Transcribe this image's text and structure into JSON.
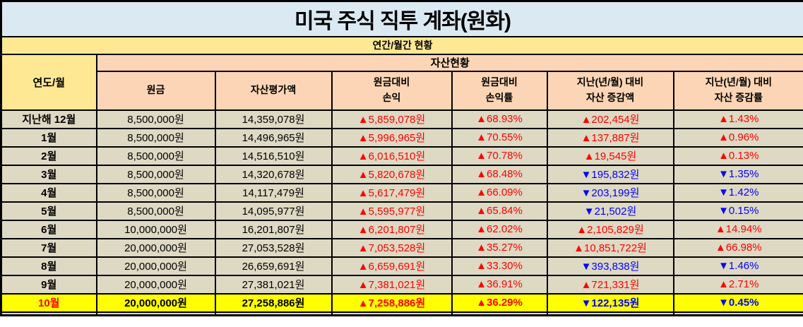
{
  "title": "미국 주식 직투 계좌(원화)",
  "subtitle": "연간/월간 현황",
  "section_header": "자산현황",
  "corner_header": "연도/월",
  "column_headers": [
    "원금",
    "자산평가액",
    "원금대비\n손익",
    "원금대비\n손익률",
    "지난(년/월) 대비\n자산 증감액",
    "지난(년/월) 대비\n자산 증감률"
  ],
  "rows": [
    {
      "month": "지난해 12월",
      "principal": "8,500,000원",
      "valuation": "14,359,078원",
      "profit_loss": "▲5,859,078원",
      "profit_loss_rate": "▲68.93%",
      "pl_dir": "up",
      "asset_change": "▲202,454원",
      "asset_change_rate": "▲1.43%",
      "chg_dir": "up",
      "highlight": false
    },
    {
      "month": "1월",
      "principal": "8,500,000원",
      "valuation": "14,496,965원",
      "profit_loss": "▲5,996,965원",
      "profit_loss_rate": "▲70.55%",
      "pl_dir": "up",
      "asset_change": "▲137,887원",
      "asset_change_rate": "▲0.96%",
      "chg_dir": "up",
      "highlight": false
    },
    {
      "month": "2월",
      "principal": "8,500,000원",
      "valuation": "14,516,510원",
      "profit_loss": "▲6,016,510원",
      "profit_loss_rate": "▲70.78%",
      "pl_dir": "up",
      "asset_change": "▲19,545원",
      "asset_change_rate": "▲0.13%",
      "chg_dir": "up",
      "highlight": false
    },
    {
      "month": "3월",
      "principal": "8,500,000원",
      "valuation": "14,320,678원",
      "profit_loss": "▲5,820,678원",
      "profit_loss_rate": "▲68.48%",
      "pl_dir": "up",
      "asset_change": "▼195,832원",
      "asset_change_rate": "▼1.35%",
      "chg_dir": "down",
      "highlight": false
    },
    {
      "month": "4월",
      "principal": "8,500,000원",
      "valuation": "14,117,479원",
      "profit_loss": "▲5,617,479원",
      "profit_loss_rate": "▲66.09%",
      "pl_dir": "up",
      "asset_change": "▼203,199원",
      "asset_change_rate": "▼1.42%",
      "chg_dir": "down",
      "highlight": false
    },
    {
      "month": "5월",
      "principal": "8,500,000원",
      "valuation": "14,095,977원",
      "profit_loss": "▲5,595,977원",
      "profit_loss_rate": "▲65.84%",
      "pl_dir": "up",
      "asset_change": "▼21,502원",
      "asset_change_rate": "▼0.15%",
      "chg_dir": "down",
      "highlight": false
    },
    {
      "month": "6월",
      "principal": "10,000,000원",
      "valuation": "16,201,807원",
      "profit_loss": "▲6,201,807원",
      "profit_loss_rate": "▲62.02%",
      "pl_dir": "up",
      "asset_change": "▲2,105,829원",
      "asset_change_rate": "▲14.94%",
      "chg_dir": "up",
      "highlight": false
    },
    {
      "month": "7월",
      "principal": "20,000,000원",
      "valuation": "27,053,528원",
      "profit_loss": "▲7,053,528원",
      "profit_loss_rate": "▲35.27%",
      "pl_dir": "up",
      "asset_change": "▲10,851,722원",
      "asset_change_rate": "▲66.98%",
      "chg_dir": "up",
      "highlight": false
    },
    {
      "month": "8월",
      "principal": "20,000,000원",
      "valuation": "26,659,691원",
      "profit_loss": "▲6,659,691원",
      "profit_loss_rate": "▲33.30%",
      "pl_dir": "up",
      "asset_change": "▼393,838원",
      "asset_change_rate": "▼1.46%",
      "chg_dir": "down",
      "highlight": false
    },
    {
      "month": "9월",
      "principal": "20,000,000원",
      "valuation": "27,381,021원",
      "profit_loss": "▲7,381,021원",
      "profit_loss_rate": "▲36.91%",
      "pl_dir": "up",
      "asset_change": "▲721,331원",
      "asset_change_rate": "▲2.71%",
      "chg_dir": "up",
      "highlight": false
    },
    {
      "month": "10월",
      "principal": "20,000,000원",
      "valuation": "27,258,886원",
      "profit_loss": "▲7,258,886원",
      "profit_loss_rate": "▲36.29%",
      "pl_dir": "up",
      "asset_change": "▼122,135원",
      "asset_change_rate": "▼0.45%",
      "chg_dir": "down",
      "highlight": true
    }
  ],
  "colors": {
    "title_bg": "#DBEAF2",
    "subtitle_bg": "#FFE894",
    "header_bg": "#FBD5B5",
    "cell_bg": "#DED9C3",
    "highlight_bg": "#FFFF00",
    "gain": "#FF0000",
    "loss": "#0000FF",
    "border": "#000000",
    "text": "#000000"
  }
}
